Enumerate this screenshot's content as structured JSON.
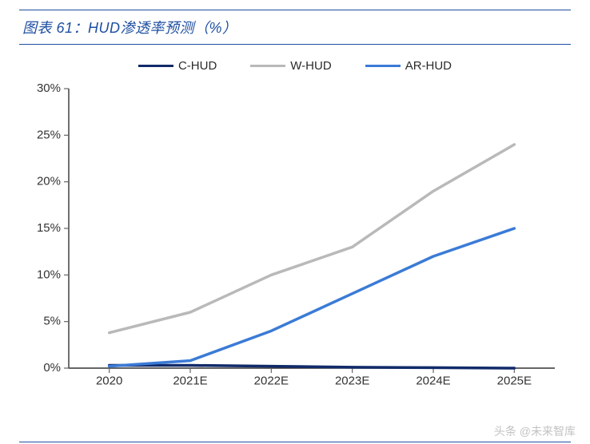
{
  "title": "图表 61：HUD渗透率预测（%）",
  "chart": {
    "type": "line",
    "categories": [
      "2020",
      "2021E",
      "2022E",
      "2023E",
      "2024E",
      "2025E"
    ],
    "series": [
      {
        "name": "C-HUD",
        "color": "#112b6a",
        "width": 3.5,
        "data": [
          0.3,
          0.3,
          0.2,
          0.1,
          0.05,
          0.0
        ]
      },
      {
        "name": "W-HUD",
        "color": "#b9b9b9",
        "width": 3.5,
        "data": [
          3.8,
          6.0,
          10.0,
          13.0,
          19.0,
          24.0
        ]
      },
      {
        "name": "AR-HUD",
        "color": "#3b7bd6",
        "width": 3.5,
        "data": [
          0.2,
          0.8,
          4.0,
          8.0,
          12.0,
          15.0
        ]
      }
    ],
    "y_axis": {
      "min": 0,
      "max": 30,
      "step": 5,
      "suffix": "%",
      "tick_mark_color": "#666666",
      "axis_color": "#333333"
    },
    "x_axis": {
      "axis_color": "#333333",
      "tick_mark_color": "#666666"
    },
    "plot": {
      "background": "#ffffff",
      "label_fontsize": 15
    }
  },
  "watermark": "头条 @未来智库",
  "colors": {
    "title_border": "#1e4ea1",
    "title_text": "#1e4ea1"
  }
}
